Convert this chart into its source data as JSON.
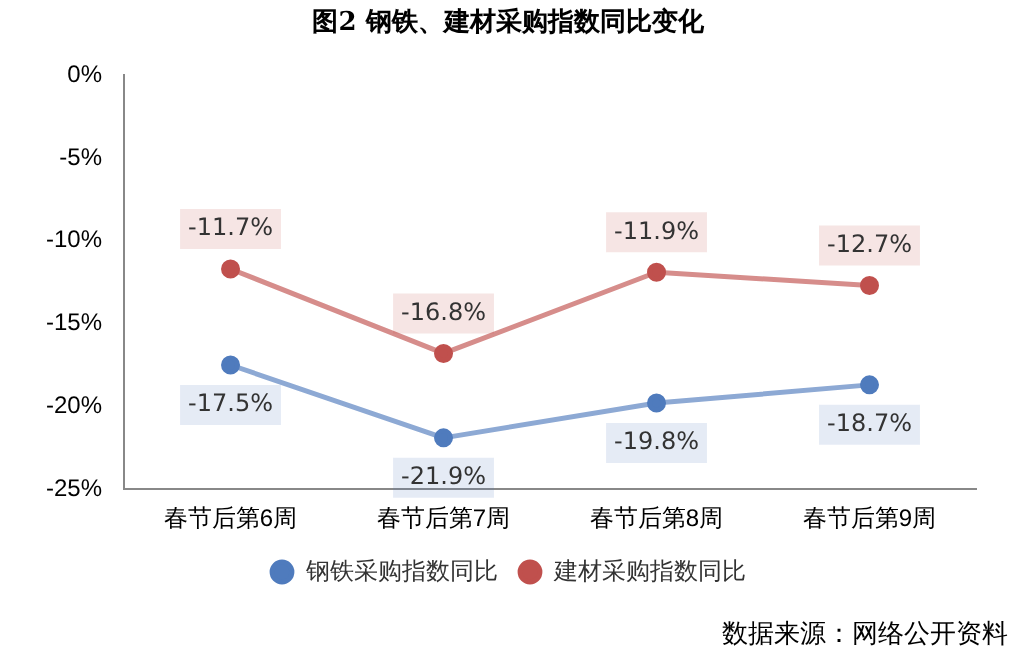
{
  "chart_data": {
    "type": "line",
    "title": "图2 钢铁、建材采购指数同比变化",
    "categories": [
      "春节后第6周",
      "春节后第7周",
      "春节后第8周",
      "春节后第9周"
    ],
    "series": [
      {
        "name": "钢铁采购指数同比",
        "color": "#4f7bbd",
        "values": [
          -17.5,
          -21.9,
          -19.8,
          -18.7
        ],
        "value_labels": [
          "-17.5%",
          "-21.9%",
          "-19.8%",
          "-18.7%"
        ]
      },
      {
        "name": "建材采购指数同比",
        "color": "#c0504d",
        "values": [
          -11.7,
          -16.8,
          -11.9,
          -12.7
        ],
        "value_labels": [
          "-11.7%",
          "-16.8%",
          "-11.9%",
          "-12.7%"
        ]
      }
    ],
    "ylim": [
      -25,
      0
    ],
    "yticks": [
      {
        "value": -25,
        "label": "-25%"
      },
      {
        "value": -20,
        "label": "-20%"
      },
      {
        "value": -15,
        "label": "-15%"
      },
      {
        "value": -10,
        "label": "-10%"
      },
      {
        "value": -5,
        "label": "-5%"
      },
      {
        "value": 0,
        "label": "0%"
      }
    ],
    "grid": false,
    "legend": "bottom",
    "marker": "circle",
    "line_style": "solid",
    "annotations": [
      "数据来源：网络公开资料"
    ]
  }
}
